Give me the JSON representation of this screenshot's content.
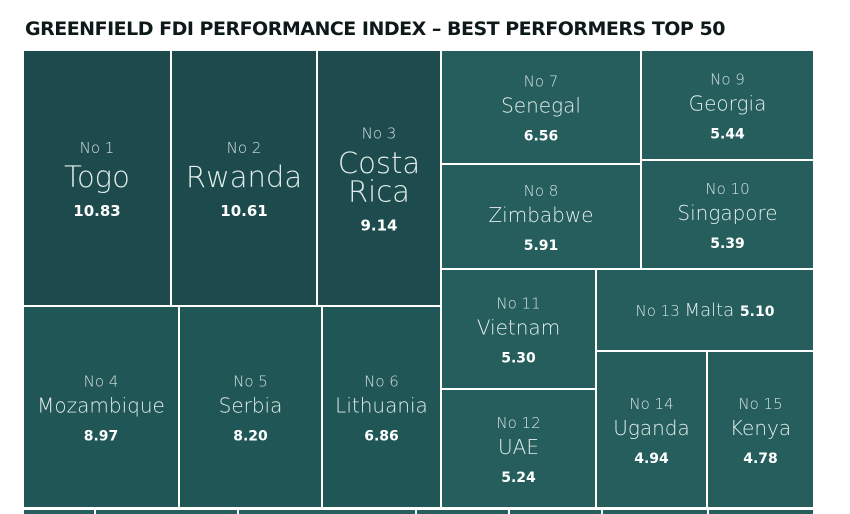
{
  "chart_data": {
    "type": "treemap",
    "title": "GREENFIELD FDI PERFORMANCE INDEX – BEST PERFORMERS TOP 50",
    "items": [
      {
        "rank": "No 1",
        "name": "Togo",
        "value": 10.83
      },
      {
        "rank": "No 2",
        "name": "Rwanda",
        "value": 10.61
      },
      {
        "rank": "No 3",
        "name": "Costa Rica",
        "value": 9.14
      },
      {
        "rank": "No 4",
        "name": "Mozambique",
        "value": 8.97
      },
      {
        "rank": "No 5",
        "name": "Serbia",
        "value": 8.2
      },
      {
        "rank": "No 6",
        "name": "Lithuania",
        "value": 6.86
      },
      {
        "rank": "No 7",
        "name": "Senegal",
        "value": 6.56
      },
      {
        "rank": "No 8",
        "name": "Zimbabwe",
        "value": 5.91
      },
      {
        "rank": "No 9",
        "name": "Georgia",
        "value": 5.44
      },
      {
        "rank": "No 10",
        "name": "Singapore",
        "value": 5.39
      },
      {
        "rank": "No 11",
        "name": "Vietnam",
        "value": 5.3
      },
      {
        "rank": "No 12",
        "name": "UAE",
        "value": 5.24
      },
      {
        "rank": "No 13",
        "name": "Malta",
        "value": 5.1
      },
      {
        "rank": "No 14",
        "name": "Uganda",
        "value": 4.94
      },
      {
        "rank": "No 15",
        "name": "Kenya",
        "value": 4.78
      }
    ],
    "colors": {
      "dark": "#1d4a4d",
      "mid": "#235a5b",
      "light": "#265e5e",
      "text": "#ffffff"
    }
  }
}
